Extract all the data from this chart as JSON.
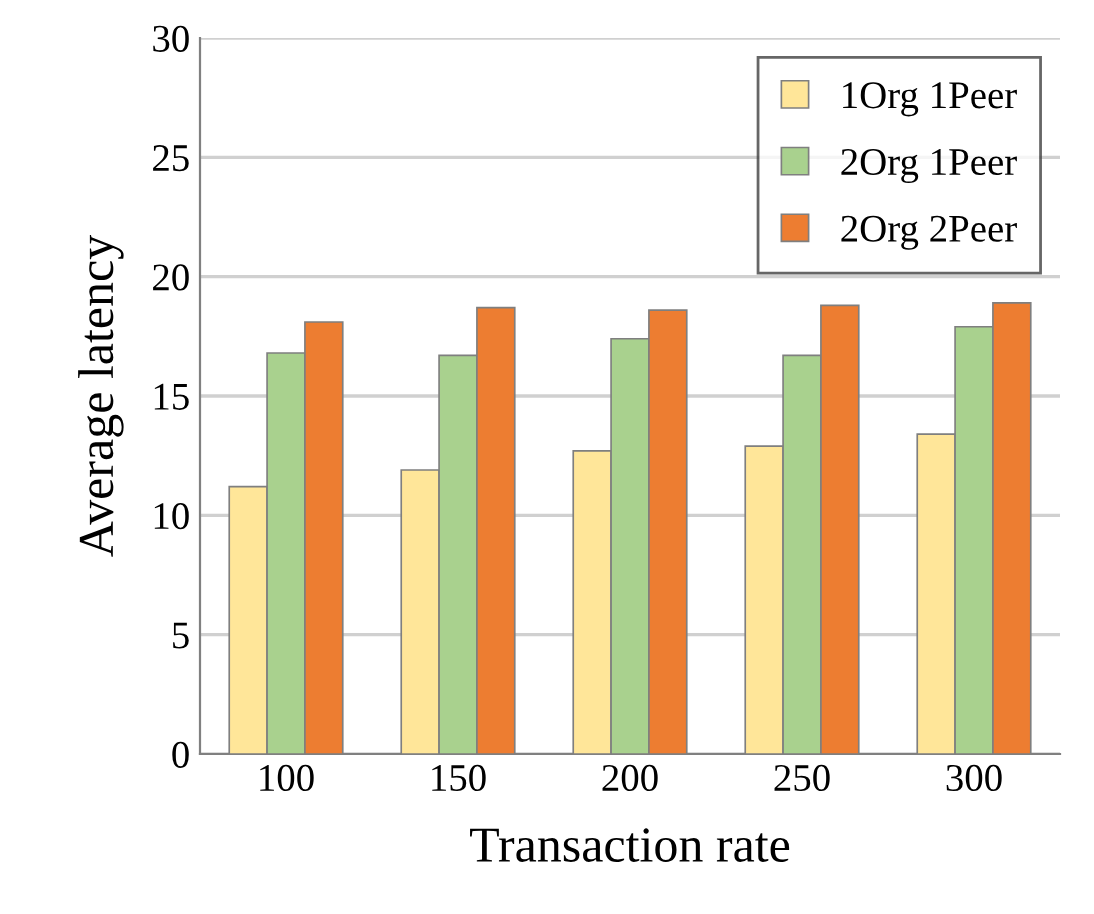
{
  "chart_data": {
    "type": "bar",
    "xlabel": "Transaction rate",
    "ylabel": "Average latency",
    "categories": [
      "100",
      "150",
      "200",
      "250",
      "300"
    ],
    "series": [
      {
        "name": "1Org 1Peer",
        "color": "#ffe699",
        "values": [
          11.2,
          11.9,
          12.7,
          12.9,
          13.4
        ]
      },
      {
        "name": "2Org 1Peer",
        "color": "#a9d18e",
        "values": [
          16.8,
          16.7,
          17.4,
          16.7,
          17.9
        ]
      },
      {
        "name": "2Org 2Peer",
        "color": "#ed7d31",
        "values": [
          18.1,
          18.7,
          18.6,
          18.8,
          18.9
        ]
      }
    ],
    "ylim": [
      0,
      30
    ],
    "yticks": [
      0,
      5,
      10,
      15,
      20,
      25,
      30
    ],
    "grid": "y",
    "legend": "top right"
  }
}
